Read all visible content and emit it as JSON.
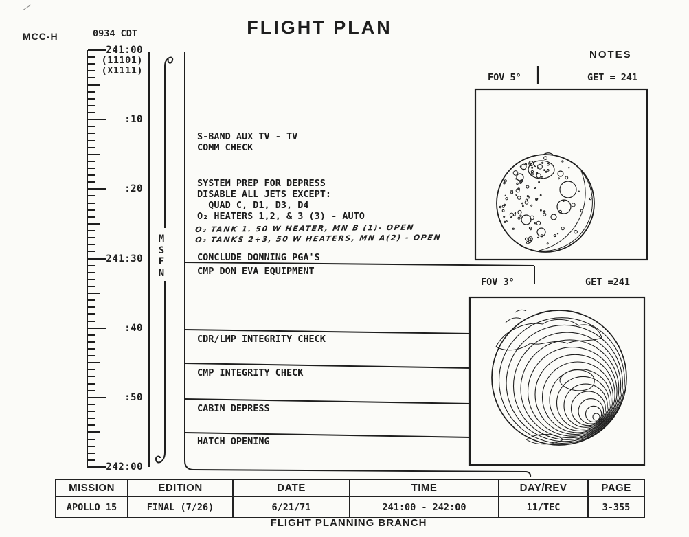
{
  "page": {
    "station": "MCC-H",
    "clock": "0934 CDT",
    "title": "FLIGHT PLAN",
    "notes_label": "NOTES",
    "branch_caption": "FLIGHT PLANNING BRANCH"
  },
  "timeline": {
    "network": "MSFN",
    "sub_labels": [
      "(11101)",
      "(X1111)"
    ],
    "labels": [
      {
        "min": 0,
        "text": "241:00"
      },
      {
        "min": 10,
        "text": ":10"
      },
      {
        "min": 20,
        "text": ":20"
      },
      {
        "min": 30,
        "text": "241:30"
      },
      {
        "min": 40,
        "text": ":40"
      },
      {
        "min": 50,
        "text": ":50"
      },
      {
        "min": 60,
        "text": "242:00"
      }
    ]
  },
  "activities": {
    "comm": [
      "S-BAND AUX TV - TV",
      "COMM CHECK"
    ],
    "prep": [
      "SYSTEM PREP FOR DEPRESS",
      "DISABLE ALL JETS EXCEPT:",
      "  QUAD C, D1, D3, D4",
      "O₂ HEATERS 1,2, & 3 (3) - AUTO"
    ],
    "handwritten": [
      "O₂ TANK 1. 50 W HEATER, MN B (1)- OPEN",
      "O₂ TANKS 2+3, 50 W HEATERS, MN A(2) - OPEN"
    ],
    "donning": [
      "CONCLUDE DONNING PGA'S",
      "CMP DON EVA EQUIPMENT"
    ],
    "rows": [
      "CDR/LMP INTEGRITY CHECK",
      "CMP INTEGRITY CHECK",
      "CABIN DEPRESS",
      "HATCH OPENING"
    ]
  },
  "notes": {
    "panels": [
      {
        "fov": "FOV 5°",
        "get": "GET = 241",
        "view": "moon"
      },
      {
        "fov": "FOV 3°",
        "get": "GET =241",
        "view": "earth"
      }
    ]
  },
  "footer": {
    "columns": [
      {
        "header": "MISSION",
        "value": "APOLLO 15"
      },
      {
        "header": "EDITION",
        "value": "FINAL (7/26)"
      },
      {
        "header": "DATE",
        "value": "6/21/71"
      },
      {
        "header": "TIME",
        "value": "241:00 - 242:00"
      },
      {
        "header": "DAY/REV",
        "value": "11/TEC"
      },
      {
        "header": "PAGE",
        "value": "3-355"
      }
    ]
  },
  "colors": {
    "ink": "#1e1e1e",
    "paper": "#fbfbf8"
  }
}
